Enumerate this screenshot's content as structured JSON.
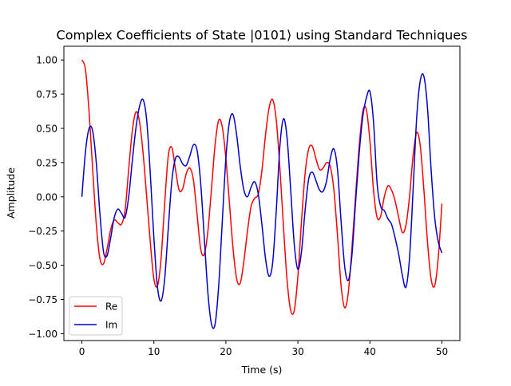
{
  "chart_data": {
    "type": "line",
    "title": "Complex Coefficients of State |0101⟩ using Standard Techniques",
    "xlabel": "Time (s)",
    "ylabel": "Amplitude",
    "xlim": [
      -2.5,
      52.5
    ],
    "ylim": [
      -1.05,
      1.1
    ],
    "x_ticks": [
      0,
      10,
      20,
      30,
      40,
      50
    ],
    "x_tick_labels": [
      "0",
      "10",
      "20",
      "30",
      "40",
      "50"
    ],
    "y_ticks": [
      -1.0,
      -0.75,
      -0.5,
      -0.25,
      0.0,
      0.25,
      0.5,
      0.75,
      1.0
    ],
    "y_tick_labels": [
      "−1.00",
      "−0.75",
      "−0.50",
      "−0.25",
      "0.00",
      "0.25",
      "0.50",
      "0.75",
      "1.00"
    ],
    "grid": false,
    "legend_position": "lower-left",
    "series": [
      {
        "name": "Re",
        "color": "#ff0000",
        "points": [
          [
            0,
            1.0
          ],
          [
            0.5,
            0.93
          ],
          [
            1,
            0.62
          ],
          [
            1.5,
            0.2
          ],
          [
            2,
            -0.2
          ],
          [
            2.5,
            -0.45
          ],
          [
            3,
            -0.49
          ],
          [
            3.5,
            -0.38
          ],
          [
            4,
            -0.24
          ],
          [
            4.5,
            -0.17
          ],
          [
            5,
            -0.19
          ],
          [
            5.5,
            -0.2
          ],
          [
            6,
            -0.1
          ],
          [
            6.5,
            0.2
          ],
          [
            7,
            0.48
          ],
          [
            7.5,
            0.62
          ],
          [
            8,
            0.55
          ],
          [
            8.5,
            0.32
          ],
          [
            9,
            0.0
          ],
          [
            9.5,
            -0.33
          ],
          [
            10,
            -0.6
          ],
          [
            10.5,
            -0.65
          ],
          [
            11,
            -0.45
          ],
          [
            11.5,
            -0.05
          ],
          [
            12,
            0.3
          ],
          [
            12.5,
            0.36
          ],
          [
            13,
            0.2
          ],
          [
            13.5,
            0.05
          ],
          [
            14,
            0.06
          ],
          [
            14.5,
            0.17
          ],
          [
            15,
            0.21
          ],
          [
            15.5,
            0.12
          ],
          [
            16,
            -0.13
          ],
          [
            16.5,
            -0.38
          ],
          [
            17,
            -0.42
          ],
          [
            17.5,
            -0.25
          ],
          [
            18,
            0.06
          ],
          [
            18.5,
            0.38
          ],
          [
            19,
            0.56
          ],
          [
            19.5,
            0.51
          ],
          [
            20,
            0.28
          ],
          [
            20.5,
            -0.05
          ],
          [
            21,
            -0.38
          ],
          [
            21.5,
            -0.6
          ],
          [
            22,
            -0.63
          ],
          [
            22.5,
            -0.47
          ],
          [
            23,
            -0.25
          ],
          [
            23.5,
            -0.07
          ],
          [
            24,
            -0.01
          ],
          [
            24.5,
            0.02
          ],
          [
            25,
            0.19
          ],
          [
            25.5,
            0.45
          ],
          [
            26,
            0.65
          ],
          [
            26.5,
            0.71
          ],
          [
            27,
            0.56
          ],
          [
            27.5,
            0.21
          ],
          [
            28,
            -0.22
          ],
          [
            28.5,
            -0.61
          ],
          [
            29,
            -0.83
          ],
          [
            29.5,
            -0.83
          ],
          [
            30,
            -0.58
          ],
          [
            30.5,
            -0.18
          ],
          [
            31,
            0.17
          ],
          [
            31.5,
            0.35
          ],
          [
            32,
            0.37
          ],
          [
            32.5,
            0.28
          ],
          [
            33,
            0.2
          ],
          [
            33.5,
            0.21
          ],
          [
            34,
            0.25
          ],
          [
            34.5,
            0.22
          ],
          [
            35,
            0.05
          ],
          [
            35.5,
            -0.28
          ],
          [
            36,
            -0.65
          ],
          [
            36.5,
            -0.81
          ],
          [
            37,
            -0.7
          ],
          [
            37.5,
            -0.38
          ],
          [
            38,
            0.0
          ],
          [
            38.5,
            0.36
          ],
          [
            39,
            0.62
          ],
          [
            39.5,
            0.64
          ],
          [
            40,
            0.41
          ],
          [
            40.5,
            0.05
          ],
          [
            41,
            -0.15
          ],
          [
            41.5,
            -0.14
          ],
          [
            42,
            0.0
          ],
          [
            42.5,
            0.08
          ],
          [
            43,
            0.05
          ],
          [
            43.5,
            -0.03
          ],
          [
            44,
            -0.15
          ],
          [
            44.5,
            -0.26
          ],
          [
            45,
            -0.21
          ],
          [
            45.5,
            0.0
          ],
          [
            46,
            0.3
          ],
          [
            46.5,
            0.47
          ],
          [
            47,
            0.37
          ],
          [
            47.5,
            0.05
          ],
          [
            48,
            -0.33
          ],
          [
            48.5,
            -0.6
          ],
          [
            49,
            -0.65
          ],
          [
            49.5,
            -0.44
          ],
          [
            50,
            -0.05
          ]
        ]
      },
      {
        "name": "Im",
        "color": "#0000cd",
        "points": [
          [
            0,
            0.0
          ],
          [
            0.5,
            0.33
          ],
          [
            1,
            0.5
          ],
          [
            1.5,
            0.48
          ],
          [
            2,
            0.25
          ],
          [
            2.5,
            -0.12
          ],
          [
            3,
            -0.4
          ],
          [
            3.5,
            -0.43
          ],
          [
            4,
            -0.3
          ],
          [
            4.5,
            -0.15
          ],
          [
            5,
            -0.09
          ],
          [
            5.5,
            -0.12
          ],
          [
            6,
            -0.15
          ],
          [
            6.5,
            0.0
          ],
          [
            7,
            0.26
          ],
          [
            7.5,
            0.5
          ],
          [
            8,
            0.66
          ],
          [
            8.5,
            0.71
          ],
          [
            9,
            0.56
          ],
          [
            9.5,
            0.17
          ],
          [
            10,
            -0.3
          ],
          [
            10.5,
            -0.66
          ],
          [
            11,
            -0.76
          ],
          [
            11.5,
            -0.6
          ],
          [
            12,
            -0.23
          ],
          [
            12.5,
            0.12
          ],
          [
            13,
            0.28
          ],
          [
            13.5,
            0.29
          ],
          [
            14,
            0.24
          ],
          [
            14.5,
            0.23
          ],
          [
            15,
            0.3
          ],
          [
            15.5,
            0.38
          ],
          [
            16,
            0.34
          ],
          [
            16.5,
            0.1
          ],
          [
            17,
            -0.3
          ],
          [
            17.5,
            -0.7
          ],
          [
            18,
            -0.93
          ],
          [
            18.5,
            -0.93
          ],
          [
            19,
            -0.65
          ],
          [
            19.5,
            -0.18
          ],
          [
            20,
            0.28
          ],
          [
            20.5,
            0.55
          ],
          [
            21,
            0.6
          ],
          [
            21.5,
            0.45
          ],
          [
            22,
            0.22
          ],
          [
            22.5,
            0.05
          ],
          [
            23,
            0.0
          ],
          [
            23.5,
            0.07
          ],
          [
            24,
            0.11
          ],
          [
            24.5,
            0.02
          ],
          [
            25,
            -0.2
          ],
          [
            25.5,
            -0.45
          ],
          [
            26,
            -0.58
          ],
          [
            26.5,
            -0.48
          ],
          [
            27,
            -0.1
          ],
          [
            27.5,
            0.37
          ],
          [
            28,
            0.57
          ],
          [
            28.5,
            0.43
          ],
          [
            29,
            0.05
          ],
          [
            29.5,
            -0.35
          ],
          [
            30,
            -0.53
          ],
          [
            30.5,
            -0.4
          ],
          [
            31,
            -0.1
          ],
          [
            31.5,
            0.13
          ],
          [
            32,
            0.18
          ],
          [
            32.5,
            0.12
          ],
          [
            33,
            0.05
          ],
          [
            33.5,
            0.04
          ],
          [
            34,
            0.12
          ],
          [
            34.5,
            0.28
          ],
          [
            35,
            0.35
          ],
          [
            35.5,
            0.2
          ],
          [
            36,
            -0.18
          ],
          [
            36.5,
            -0.51
          ],
          [
            37,
            -0.61
          ],
          [
            37.5,
            -0.43
          ],
          [
            38,
            -0.05
          ],
          [
            38.5,
            0.31
          ],
          [
            39,
            0.58
          ],
          [
            39.5,
            0.72
          ],
          [
            40,
            0.77
          ],
          [
            40.5,
            0.55
          ],
          [
            41,
            0.1
          ],
          [
            41.5,
            -0.07
          ],
          [
            42,
            -0.1
          ],
          [
            42.5,
            -0.16
          ],
          [
            43,
            -0.2
          ],
          [
            43.5,
            -0.3
          ],
          [
            44,
            -0.42
          ],
          [
            44.5,
            -0.57
          ],
          [
            45,
            -0.66
          ],
          [
            45.5,
            -0.45
          ],
          [
            46,
            0.05
          ],
          [
            46.5,
            0.58
          ],
          [
            47,
            0.85
          ],
          [
            47.5,
            0.88
          ],
          [
            48,
            0.65
          ],
          [
            48.5,
            0.2
          ],
          [
            49,
            -0.15
          ],
          [
            49.5,
            -0.33
          ],
          [
            50,
            -0.41
          ]
        ]
      }
    ]
  }
}
